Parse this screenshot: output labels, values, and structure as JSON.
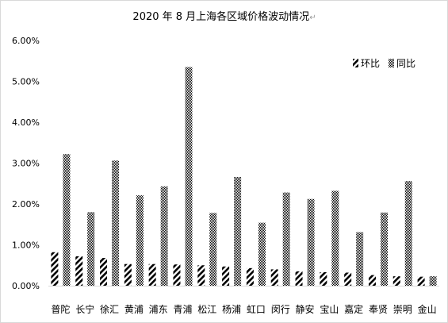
{
  "chart_data": {
    "type": "bar",
    "title": "2020 年 8 月上海各区域价格波动情况",
    "title_mark": "↵",
    "xlabel": "",
    "ylabel": "",
    "ylim": [
      0,
      0.06
    ],
    "yticks": [
      "0.00%",
      "1.00%",
      "2.00%",
      "3.00%",
      "4.00%",
      "5.00%",
      "6.00%"
    ],
    "grid": false,
    "legend_position": "top-right",
    "categories": [
      "普陀",
      "长宁",
      "徐汇",
      "黄浦",
      "浦东",
      "青浦",
      "松江",
      "杨浦",
      "虹口",
      "闵行",
      "静安",
      "宝山",
      "嘉定",
      "奉贤",
      "崇明",
      "金山"
    ],
    "series": [
      {
        "name": "环比",
        "pattern": "diagonal-stripes",
        "color": "#000000",
        "values": [
          0.0082,
          0.0072,
          0.0068,
          0.0053,
          0.0053,
          0.0052,
          0.005,
          0.0047,
          0.0043,
          0.004,
          0.0035,
          0.0033,
          0.0032,
          0.0026,
          0.0023,
          0.0022
        ]
      },
      {
        "name": "同比",
        "pattern": "checker",
        "color": "#000000",
        "values": [
          0.0322,
          0.018,
          0.0306,
          0.0221,
          0.0243,
          0.0535,
          0.0178,
          0.0266,
          0.0154,
          0.0228,
          0.0212,
          0.0232,
          0.0131,
          0.0179,
          0.0256,
          0.0023
        ]
      }
    ]
  }
}
